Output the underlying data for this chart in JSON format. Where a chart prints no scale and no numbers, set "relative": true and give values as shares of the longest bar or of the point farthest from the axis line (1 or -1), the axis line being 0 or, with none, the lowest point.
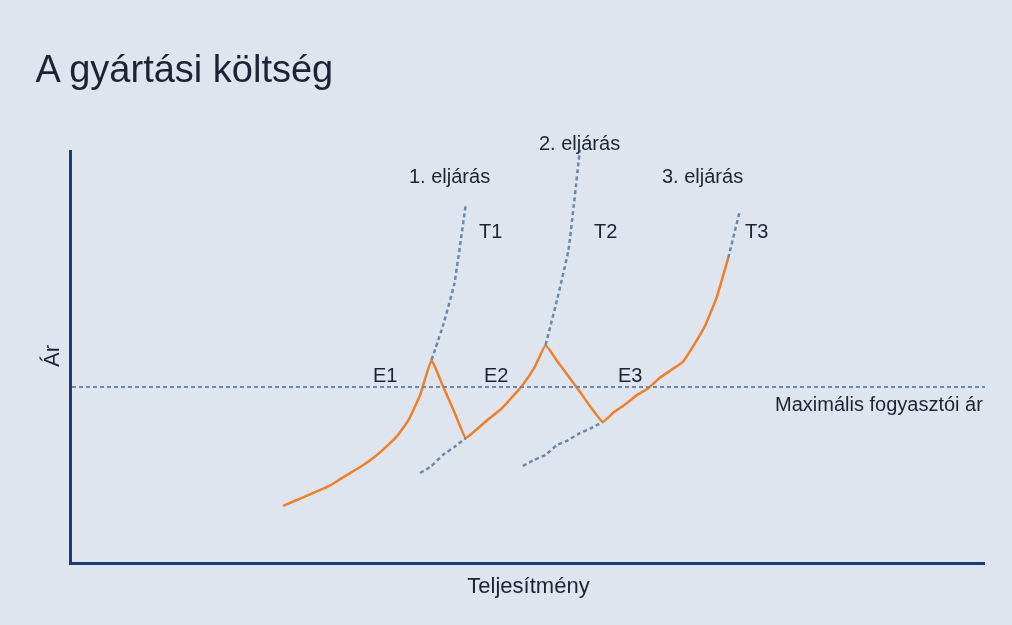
{
  "chart_data": {
    "type": "line",
    "title": "A gyártási költség",
    "xlabel": "Teljesítmény",
    "ylabel": "Ár",
    "relative": true,
    "categories": [
      null,
      null,
      null,
      null,
      null,
      null,
      null,
      null,
      null,
      null,
      null,
      null,
      null,
      null,
      null,
      null,
      null,
      null,
      null,
      null,
      null,
      null,
      null,
      null,
      null,
      null,
      null,
      null,
      null,
      null,
      null,
      null,
      null,
      null,
      null,
      null,
      null,
      null,
      null,
      null,
      null,
      null,
      null,
      null,
      null,
      null,
      null,
      null,
      null,
      null,
      null,
      null,
      null,
      null,
      null,
      null,
      null,
      null,
      null,
      null,
      null,
      null,
      null,
      null,
      null,
      null,
      null,
      null,
      null,
      null,
      null,
      null,
      null,
      null,
      null,
      null,
      null,
      null,
      null,
      null
    ],
    "series": [
      {
        "color": "#f07f2a",
        "line_style": "solid",
        "values": [
          null,
          null,
          null,
          null,
          null,
          null,
          null,
          null,
          null,
          null,
          null,
          null,
          null,
          null,
          null,
          null,
          null,
          null,
          0.136,
          0.148,
          0.16,
          0.172,
          0.184,
          0.201,
          0.218,
          0.235,
          0.255,
          0.279,
          0.306,
          0.345,
          0.405,
          0.49,
          0.427,
          0.364,
          0.301,
          0.323,
          0.347,
          0.369,
          0.398,
          0.43,
          0.471,
          0.527,
          0.488,
          0.451,
          0.413,
          0.374,
          0.34,
          0.364,
          0.383,
          0.405,
          0.422,
          0.447,
          0.466,
          0.485,
          0.527,
          0.575,
          0.643,
          0.738,
          null,
          null,
          null,
          null,
          null,
          null,
          null,
          null,
          null,
          null,
          null,
          null,
          null,
          null,
          null,
          null,
          null,
          null,
          null,
          null,
          null,
          null
        ]
      },
      {
        "color": "#6e86a8",
        "line_style": "dashed",
        "values": [
          null,
          null,
          null,
          null,
          null,
          null,
          null,
          null,
          null,
          null,
          null,
          null,
          null,
          null,
          null,
          null,
          null,
          null,
          null,
          null,
          null,
          null,
          null,
          null,
          null,
          null,
          null,
          null,
          null,
          null,
          null,
          0.49,
          0.573,
          0.675,
          0.867,
          null,
          null,
          null,
          null,
          null,
          null,
          null,
          null,
          null,
          null,
          null,
          null,
          null,
          null,
          null,
          null,
          null,
          null,
          null,
          null,
          null,
          null,
          null,
          null,
          null,
          null,
          null,
          null,
          null,
          null,
          null,
          null,
          null,
          null,
          null,
          null,
          null,
          null,
          null,
          null,
          null,
          null,
          null,
          null,
          null
        ]
      },
      {
        "color": "#6e86a8",
        "line_style": "dashed",
        "values": [
          null,
          null,
          null,
          null,
          null,
          null,
          null,
          null,
          null,
          null,
          null,
          null,
          null,
          null,
          null,
          null,
          null,
          null,
          null,
          null,
          null,
          null,
          null,
          null,
          null,
          null,
          null,
          null,
          null,
          null,
          0.216,
          0.233,
          0.26,
          0.279,
          0.301,
          null,
          null,
          null,
          null,
          null,
          null,
          null,
          null,
          null,
          null,
          null,
          null,
          null,
          null,
          null,
          null,
          null,
          null,
          null,
          null,
          null,
          null,
          null,
          null,
          null,
          null,
          null,
          null,
          null,
          null,
          null,
          null,
          null,
          null,
          null,
          null,
          null,
          null,
          null,
          null,
          null,
          null,
          null,
          null,
          null
        ]
      },
      {
        "color": "#6e86a8",
        "line_style": "dashed",
        "values": [
          null,
          null,
          null,
          null,
          null,
          null,
          null,
          null,
          null,
          null,
          null,
          null,
          null,
          null,
          null,
          null,
          null,
          null,
          null,
          null,
          null,
          null,
          null,
          null,
          null,
          null,
          null,
          null,
          null,
          null,
          null,
          null,
          null,
          null,
          null,
          null,
          null,
          null,
          null,
          null,
          null,
          0.527,
          0.636,
          0.757,
          1.0,
          null,
          null,
          null,
          null,
          null,
          null,
          null,
          null,
          null,
          null,
          null,
          null,
          null,
          null,
          null,
          null,
          null,
          null,
          null,
          null,
          null,
          null,
          null,
          null,
          null,
          null,
          null,
          null,
          null,
          null,
          null,
          null,
          null,
          null,
          null
        ]
      },
      {
        "color": "#6e86a8",
        "line_style": "dashed",
        "values": [
          null,
          null,
          null,
          null,
          null,
          null,
          null,
          null,
          null,
          null,
          null,
          null,
          null,
          null,
          null,
          null,
          null,
          null,
          null,
          null,
          null,
          null,
          null,
          null,
          null,
          null,
          null,
          null,
          null,
          null,
          null,
          null,
          null,
          null,
          null,
          null,
          null,
          null,
          null,
          0.233,
          0.248,
          0.26,
          0.284,
          0.296,
          0.313,
          0.325,
          0.34,
          null,
          null,
          null,
          null,
          null,
          null,
          null,
          null,
          null,
          null,
          null,
          null,
          null,
          null,
          null,
          null,
          null,
          null,
          null,
          null,
          null,
          null,
          null,
          null,
          null,
          null,
          null,
          null,
          null,
          null,
          null,
          null,
          null
        ]
      },
      {
        "color": "#6e86a8",
        "line_style": "dashed",
        "values": [
          null,
          null,
          null,
          null,
          null,
          null,
          null,
          null,
          null,
          null,
          null,
          null,
          null,
          null,
          null,
          null,
          null,
          null,
          null,
          null,
          null,
          null,
          null,
          null,
          null,
          null,
          null,
          null,
          null,
          null,
          null,
          null,
          null,
          null,
          null,
          null,
          null,
          null,
          null,
          null,
          null,
          null,
          null,
          null,
          null,
          null,
          null,
          null,
          null,
          null,
          null,
          null,
          null,
          null,
          null,
          null,
          null,
          0.738,
          0.85,
          null,
          null,
          null,
          null,
          null,
          null,
          null,
          null,
          null,
          null,
          null,
          null,
          null,
          null,
          null,
          null,
          null,
          null,
          null,
          null,
          null
        ]
      }
    ],
    "ref_lines": [
      {
        "axis": "y",
        "value": 0.425,
        "label": "Maximális fogyasztói ár",
        "color": "#6e86a8",
        "line_style": "dashed"
      }
    ],
    "annotations": [
      "1. eljárás",
      "2. eljárás",
      "3. eljárás",
      "T1",
      "T2",
      "T3",
      "E1",
      "E2",
      "E3"
    ]
  }
}
